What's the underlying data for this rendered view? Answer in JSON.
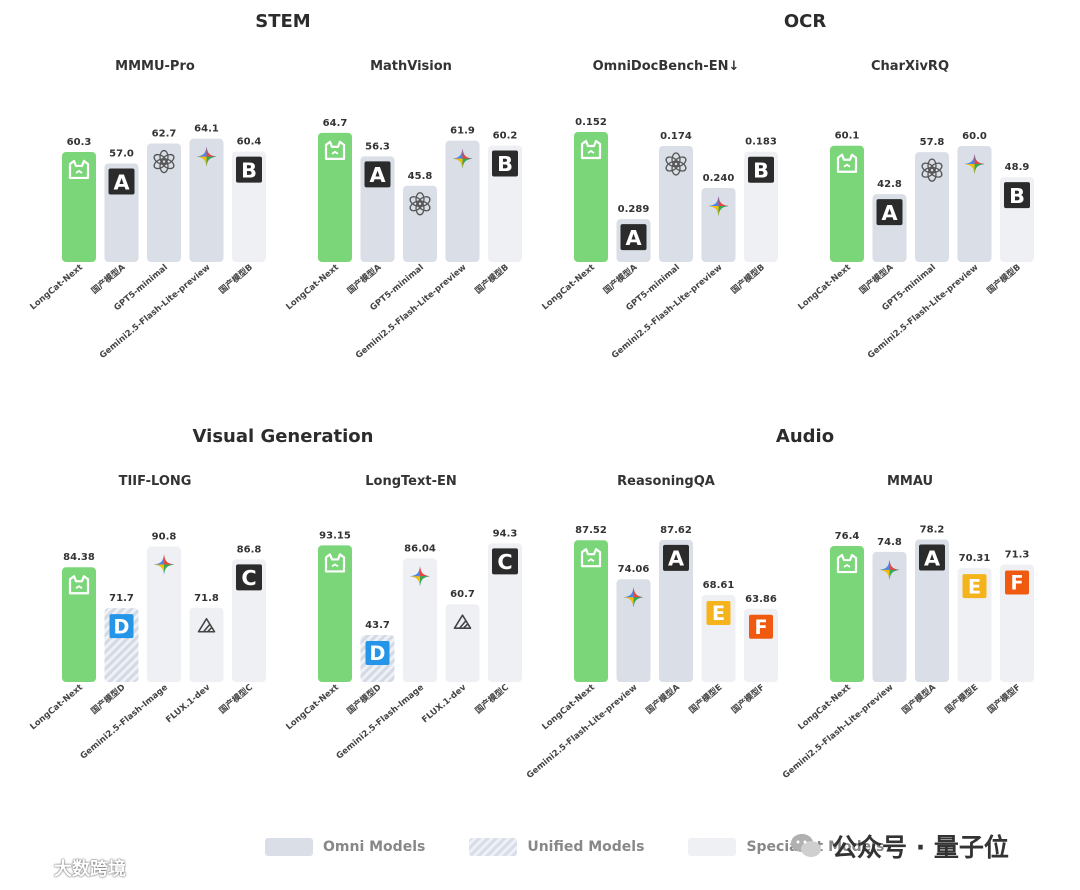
{
  "sections": [
    {
      "title": "STEM"
    },
    {
      "title": "OCR"
    },
    {
      "title": "Visual Generation"
    },
    {
      "title": "Audio"
    }
  ],
  "colors": {
    "longcat": "#7bd67a",
    "omni": "#d9dee7",
    "unified_stripe": "#d8dee8",
    "specialist": "#eef0f3",
    "badge_dark": "#2b2b2b",
    "badge_blue": "#2495e8",
    "badge_yellow": "#f6b41c",
    "badge_orange": "#ef5a10"
  },
  "chart_data": [
    {
      "type": "bar",
      "title": "MMMU-Pro",
      "ylim": [
        30,
        70
      ],
      "categories": [
        "LongCat-Next",
        "国产模型A",
        "GPT5-minimal",
        "Gemini2.5-Flash-Lite-preview",
        "国产模型B"
      ],
      "values": [
        60.3,
        57.0,
        62.7,
        64.1,
        60.4
      ],
      "labels": [
        "60.3",
        "57.0",
        "62.7",
        "64.1",
        "60.4"
      ],
      "kinds": [
        "longcat",
        "omni",
        "omni",
        "omni",
        "specialist"
      ],
      "icons": [
        "longcat-icon",
        "A",
        "openai-icon",
        "gemini-icon",
        "B"
      ]
    },
    {
      "type": "bar",
      "title": "MathVision",
      "ylim": [
        20,
        70
      ],
      "categories": [
        "LongCat-Next",
        "国产模型A",
        "GPT5-minimal",
        "Gemini2.5-Flash-Lite-preview",
        "国产模型B"
      ],
      "values": [
        64.7,
        56.3,
        45.8,
        61.9,
        60.2
      ],
      "labels": [
        "64.7",
        "56.3",
        "45.8",
        "61.9",
        "60.2"
      ],
      "kinds": [
        "longcat",
        "omni",
        "omni",
        "omni",
        "specialist"
      ],
      "icons": [
        "longcat-icon",
        "A",
        "openai-icon",
        "gemini-icon",
        "B"
      ]
    },
    {
      "type": "bar",
      "title": "OmniDocBench-EN↓",
      "ylim": [
        0.35,
        0.13
      ],
      "categories": [
        "LongCat-Next",
        "国产模型A",
        "GPT5-minimal",
        "Gemini2.5-Flash-Lite-preview",
        "国产模型B"
      ],
      "values": [
        0.152,
        0.289,
        0.174,
        0.24,
        0.183
      ],
      "labels": [
        "0.152",
        "0.289",
        "0.174",
        "0.240",
        "0.183"
      ],
      "kinds": [
        "longcat",
        "omni",
        "omni",
        "omni",
        "specialist"
      ],
      "icons": [
        "longcat-icon",
        "A",
        "openai-icon",
        "gemini-icon",
        "B"
      ]
    },
    {
      "type": "bar",
      "title": "CharXivRQ",
      "ylim": [
        20,
        70
      ],
      "categories": [
        "LongCat-Next",
        "国产模型A",
        "GPT5-minimal",
        "Gemini2.5-Flash-Lite-preview",
        "国产模型B"
      ],
      "values": [
        60.1,
        42.8,
        57.8,
        60.0,
        48.9
      ],
      "labels": [
        "60.1",
        "42.8",
        "57.8",
        "60.0",
        "48.9"
      ],
      "kinds": [
        "longcat",
        "omni",
        "omni",
        "omni",
        "specialist"
      ],
      "icons": [
        "longcat-icon",
        "A",
        "openai-icon",
        "gemini-icon",
        "B"
      ]
    },
    {
      "type": "bar",
      "title": "TIIF-LONG",
      "ylim": [
        50,
        95
      ],
      "categories": [
        "LongCat-Next",
        "国产模型D",
        "Gemini2.5-Flash-Image",
        "FLUX.1-dev",
        "国产模型C"
      ],
      "values": [
        84.38,
        71.7,
        90.8,
        71.8,
        86.8
      ],
      "labels": [
        "84.38",
        "71.7",
        "90.8",
        "71.8",
        "86.8"
      ],
      "kinds": [
        "longcat",
        "unified",
        "specialist",
        "specialist",
        "specialist"
      ],
      "icons": [
        "longcat-icon",
        "D",
        "gemini-icon",
        "flux-icon",
        "C"
      ]
    },
    {
      "type": "bar",
      "title": "LongText-EN",
      "ylim": [
        20,
        100
      ],
      "categories": [
        "LongCat-Next",
        "国产模型D",
        "Gemini2.5-Flash-Image",
        "FLUX.1-dev",
        "国产模型C"
      ],
      "values": [
        93.15,
        43.7,
        86.04,
        60.7,
        94.3
      ],
      "labels": [
        "93.15",
        "43.7",
        "86.04",
        "60.7",
        "94.3"
      ],
      "kinds": [
        "longcat",
        "unified",
        "specialist",
        "specialist",
        "specialist"
      ],
      "icons": [
        "longcat-icon",
        "D",
        "gemini-icon",
        "flux-icon",
        "C"
      ]
    },
    {
      "type": "bar",
      "title": "ReasoningQA",
      "ylim": [
        40,
        90
      ],
      "categories": [
        "LongCat-Next",
        "Gemini2.5-Flash-Lite-preview",
        "国产模型A",
        "国产模型E",
        "国产模型F"
      ],
      "values": [
        87.52,
        74.06,
        87.62,
        68.61,
        63.86
      ],
      "labels": [
        "87.52",
        "74.06",
        "87.62",
        "68.61",
        "63.86"
      ],
      "kinds": [
        "longcat",
        "omni",
        "omni",
        "specialist",
        "specialist"
      ],
      "icons": [
        "longcat-icon",
        "gemini-icon",
        "A",
        "E",
        "F"
      ]
    },
    {
      "type": "bar",
      "title": "MMAU",
      "ylim": [
        40,
        80
      ],
      "categories": [
        "LongCat-Next",
        "Gemini2.5-Flash-Lite-preview",
        "国产模型A",
        "国产模型E",
        "国产模型F"
      ],
      "values": [
        76.4,
        74.8,
        78.2,
        70.31,
        71.3
      ],
      "labels": [
        "76.4",
        "74.8",
        "78.2",
        "70.31",
        "71.3"
      ],
      "kinds": [
        "longcat",
        "omni",
        "omni",
        "specialist",
        "specialist"
      ],
      "icons": [
        "longcat-icon",
        "gemini-icon",
        "A",
        "E",
        "F"
      ]
    }
  ],
  "legend": {
    "items": [
      {
        "label": "Omni Models",
        "kind": "omni"
      },
      {
        "label": "Unified Models",
        "kind": "unified"
      },
      {
        "label": "Specialist Models",
        "kind": "specialist"
      }
    ]
  },
  "watermarks": {
    "right_text": "公众号 · 量子位",
    "left_text": "大数跨境"
  }
}
